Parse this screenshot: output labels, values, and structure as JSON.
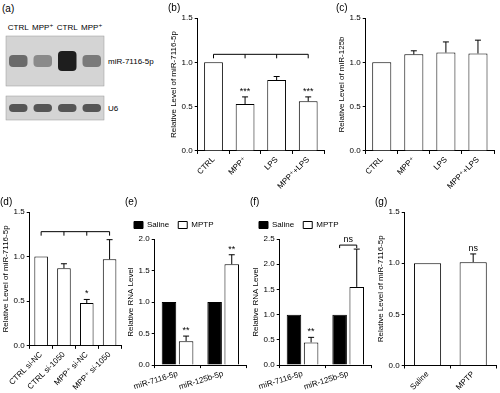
{
  "blot": {
    "title": "(a)",
    "lanes": [
      "CTRL",
      "MPP⁺",
      "CTRL",
      "MPP⁺"
    ],
    "bands": [
      "miR-7116-5p",
      "U6"
    ]
  },
  "chart_data": [
    {
      "title": "(b)",
      "type": "bar",
      "categories": [
        "CTRL",
        "MPP⁺",
        "LPS",
        "MPP⁺+LPS"
      ],
      "values": [
        1.0,
        0.53,
        0.8,
        0.56
      ],
      "errors": [
        0,
        0.08,
        0.04,
        0.05
      ],
      "color": "#ffffff",
      "y_label": "Relative Level of miR-7116-5p",
      "ylim": [
        0,
        1.5
      ],
      "yticks": [
        {
          "value": 0,
          "label": "0.0"
        },
        {
          "value": 0.5,
          "label": "0.5"
        },
        {
          "value": 1,
          "label": "1.0"
        },
        {
          "value": 1.5,
          "label": "1.5"
        }
      ],
      "annotations": [
        {
          "text": "***",
          "category": "MPP⁺"
        },
        {
          "text": "***",
          "category": "MPP⁺+LPS"
        }
      ],
      "grid": false
    },
    {
      "title": "(c)",
      "type": "bar",
      "categories": [
        "CTRL",
        "MPP⁺",
        "LPS",
        "MPP⁺+LPS"
      ],
      "values": [
        1.0,
        1.09,
        1.11,
        1.1
      ],
      "errors": [
        0,
        0.04,
        0.12,
        0.15
      ],
      "color": "#ffffff",
      "y_label": "Relative Level of miR-125b",
      "ylim": [
        0,
        1.5
      ],
      "yticks": [
        {
          "value": 0,
          "label": "0.0"
        },
        {
          "value": 0.5,
          "label": "0.5"
        },
        {
          "value": 1,
          "label": "1.0"
        },
        {
          "value": 1.5,
          "label": "1.5"
        }
      ],
      "grid": false
    },
    {
      "title": "(d)",
      "type": "bar",
      "categories": [
        "CTRL si-NC",
        "CTRL si-1050",
        "MPP⁺ si-NC",
        "MPP⁺ si-1050"
      ],
      "values": [
        1.0,
        0.87,
        0.48,
        0.97
      ],
      "errors": [
        0,
        0.05,
        0.04,
        0.22
      ],
      "color": "#ffffff",
      "y_label": "Relative Level of miR-7116-5p",
      "ylim": [
        0,
        1.5
      ],
      "yticks": [
        {
          "value": 0,
          "label": "0.0"
        },
        {
          "value": 0.5,
          "label": "0.5"
        },
        {
          "value": 1,
          "label": "1.0"
        },
        {
          "value": 1.5,
          "label": "1.5"
        }
      ],
      "annotations": [
        {
          "text": "*",
          "category": "MPP⁺ si-NC"
        }
      ],
      "grid": false
    },
    {
      "title": "(e)",
      "type": "bar",
      "categories": [
        "miR-7116-5p",
        "miR-125b-5p"
      ],
      "series": [
        {
          "name": "Saline",
          "color": "#000000",
          "values": [
            1.0,
            1.0
          ],
          "errors": [
            0,
            0
          ]
        },
        {
          "name": "MPTP",
          "color": "#ffffff",
          "values": [
            0.38,
            1.6
          ],
          "errors": [
            0.08,
            0.15
          ]
        }
      ],
      "y_label": "Relative RNA Level",
      "ylim": [
        0,
        2
      ],
      "yticks": [
        {
          "value": 0,
          "label": "0.0"
        },
        {
          "value": 0.5,
          "label": "0.5"
        },
        {
          "value": 1,
          "label": "1.0"
        },
        {
          "value": 1.5,
          "label": "1.5"
        },
        {
          "value": 2,
          "label": "2.0"
        }
      ],
      "annotations": [
        {
          "text": "**",
          "category": "miR-7116-5p",
          "series": "MPTP"
        },
        {
          "text": "**",
          "category": "miR-125b-5p",
          "series": "MPTP"
        }
      ],
      "legend": "top-left",
      "grid": false
    },
    {
      "title": "(f)",
      "type": "bar",
      "categories": [
        "miR-7116-5p",
        "miR-125b-5p"
      ],
      "series": [
        {
          "name": "Saline",
          "color": "#000000",
          "values": [
            1.0,
            1.0
          ],
          "errors": [
            0,
            0
          ]
        },
        {
          "name": "MPTP",
          "color": "#ffffff",
          "values": [
            0.45,
            1.55
          ],
          "errors": [
            0.1,
            0.75
          ]
        }
      ],
      "y_label": "Relative RNA Level",
      "ylim": [
        0,
        2.5
      ],
      "yticks": [
        {
          "value": 0,
          "label": "0.0"
        },
        {
          "value": 0.5,
          "label": "0.5"
        },
        {
          "value": 1,
          "label": "1.0"
        },
        {
          "value": 1.5,
          "label": "1.5"
        },
        {
          "value": 2,
          "label": "2.0"
        },
        {
          "value": 2.5,
          "label": "2.5"
        }
      ],
      "annotations": [
        {
          "text": "**",
          "category": "miR-7116-5p",
          "series": "MPTP"
        },
        {
          "text": "ns",
          "category": "miR-125b-5p"
        }
      ],
      "legend": "top-left",
      "grid": false
    },
    {
      "title": "(g)",
      "type": "bar",
      "categories": [
        "Saline",
        "MPTP"
      ],
      "values": [
        1.0,
        1.01
      ],
      "errors": [
        0,
        0.08
      ],
      "color": "#ffffff",
      "y_label": "Relative Level of miR-7116-5p",
      "ylim": [
        0,
        1.5
      ],
      "yticks": [
        {
          "value": 0,
          "label": "0.0"
        },
        {
          "value": 0.5,
          "label": "0.5"
        },
        {
          "value": 1,
          "label": "1.0"
        },
        {
          "value": 1.5,
          "label": "1.5"
        }
      ],
      "annotations": [
        {
          "text": "ns",
          "category": "MPTP"
        }
      ],
      "grid": false
    }
  ]
}
